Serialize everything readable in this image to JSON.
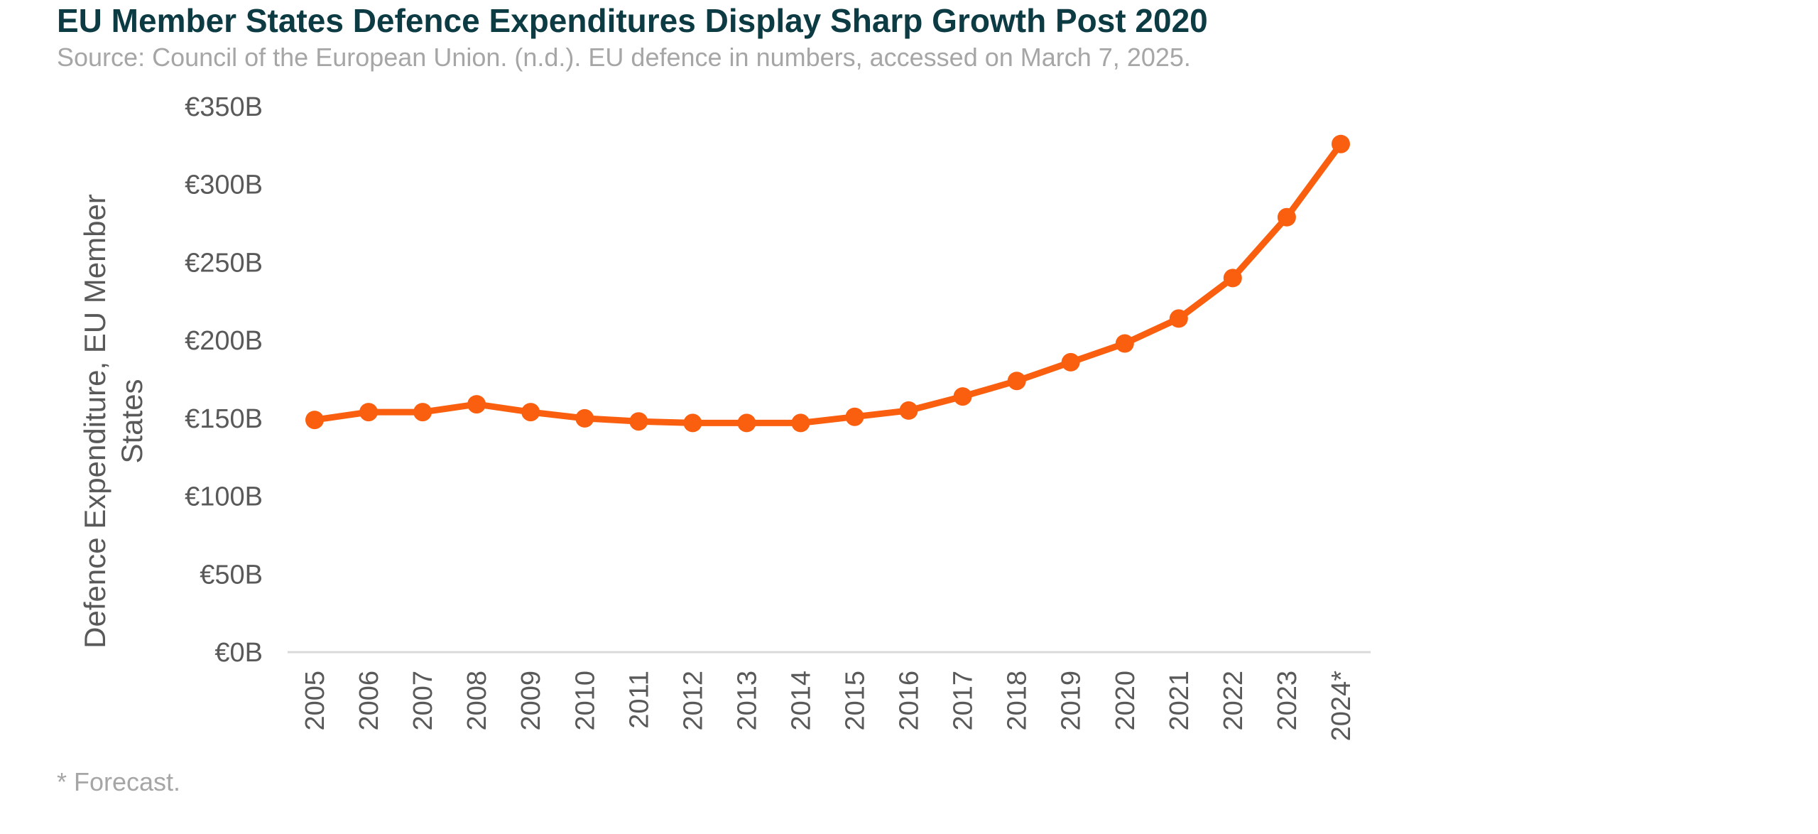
{
  "chart_data": {
    "type": "line",
    "title": "EU Member States Defence Expenditures Display Sharp Growth Post 2020",
    "subtitle": "Source: Council of the European Union. (n.d.). EU defence in numbers, accessed on March 7, 2025.",
    "footnote": "* Forecast.",
    "ylabel_lines": [
      "Defence Expenditure, EU Member",
      "States"
    ],
    "xlabel": "",
    "categories": [
      "2005",
      "2006",
      "2007",
      "2008",
      "2009",
      "2010",
      "2011",
      "2012",
      "2013",
      "2014",
      "2015",
      "2016",
      "2017",
      "2018",
      "2019",
      "2020",
      "2021",
      "2022",
      "2023",
      "2024*"
    ],
    "series": [
      {
        "name": "Defence Expenditure, EU Member States",
        "values": [
          149,
          154,
          154,
          159,
          154,
          150,
          148,
          147,
          147,
          147,
          151,
          155,
          164,
          174,
          186,
          198,
          214,
          240,
          279,
          326
        ]
      }
    ],
    "ylim": [
      0,
      350
    ],
    "yticks": [
      0,
      50,
      100,
      150,
      200,
      250,
      300,
      350
    ],
    "ytick_labels": [
      "€0B",
      "€50B",
      "€100B",
      "€150B",
      "€200B",
      "€250B",
      "€300B",
      "€350B"
    ],
    "grid": false,
    "legend": "none",
    "colors": {
      "line": "#fa5f0f",
      "axis": "#d9d9d9",
      "tick_text": "#595959",
      "title": "#0d3b44",
      "subtitle": "#a6a6a6"
    }
  }
}
